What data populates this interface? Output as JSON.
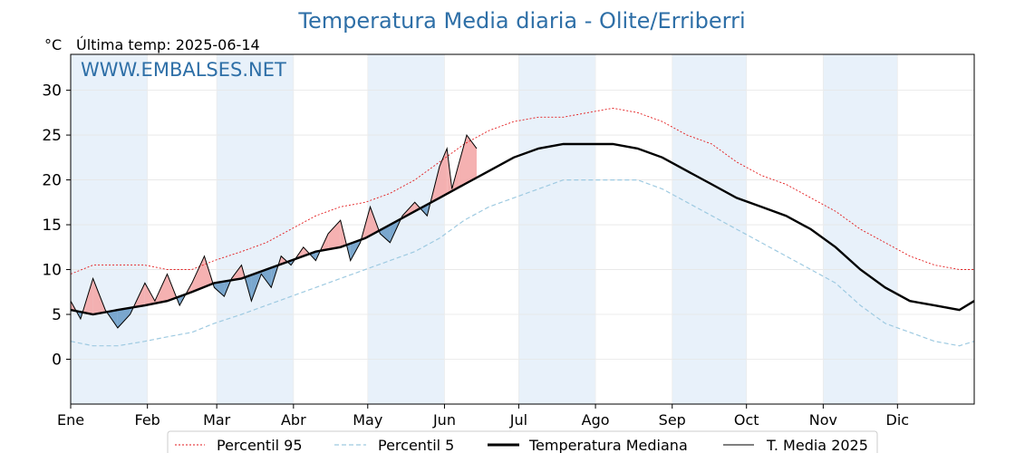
{
  "chart_data": {
    "type": "line",
    "title": "Temperatura Media diaria - Olite/Erriberri",
    "unit_label": "°C",
    "last_temp_label": "Última temp: 2025-06-14",
    "watermark": "WWW.EMBALSES.NET",
    "months": [
      "Ene",
      "Feb",
      "Mar",
      "Abr",
      "May",
      "Jun",
      "Jul",
      "Ago",
      "Sep",
      "Oct",
      "Nov",
      "Dic"
    ],
    "month_start_day": [
      1,
      32,
      60,
      91,
      121,
      152,
      182,
      213,
      244,
      274,
      305,
      335
    ],
    "x_range": [
      1,
      366
    ],
    "ylim": [
      -5,
      34
    ],
    "yticks": [
      0,
      5,
      10,
      15,
      20,
      25,
      30
    ],
    "grid": true,
    "legend_position": "bottom-center",
    "colors": {
      "p95": "#e31a1c",
      "p5": "#9ecae1",
      "median": "#000000",
      "current": "#000000",
      "above_fill": "#f4a9a8",
      "below_fill": "#6e9ec9",
      "band": "#e8f1fa",
      "title": "#2e6fa7"
    },
    "series": [
      {
        "name": "Percentil 95",
        "style": "dotted",
        "x": [
          1,
          10,
          20,
          31,
          40,
          50,
          59,
          70,
          80,
          90,
          100,
          110,
          120,
          130,
          140,
          150,
          160,
          170,
          180,
          190,
          200,
          210,
          220,
          230,
          240,
          250,
          260,
          270,
          280,
          290,
          300,
          310,
          320,
          330,
          340,
          350,
          360,
          366
        ],
        "y": [
          9.5,
          10.5,
          10.5,
          10.5,
          10.0,
          10.0,
          11.0,
          12.0,
          13.0,
          14.5,
          16.0,
          17.0,
          17.5,
          18.5,
          20.0,
          22.0,
          24.0,
          25.5,
          26.5,
          27.0,
          27.0,
          27.5,
          28.0,
          27.5,
          26.5,
          25.0,
          24.0,
          22.0,
          20.5,
          19.5,
          18.0,
          16.5,
          14.5,
          13.0,
          11.5,
          10.5,
          10.0,
          10.0
        ]
      },
      {
        "name": "Percentil 5",
        "style": "dashed",
        "x": [
          1,
          10,
          20,
          31,
          40,
          50,
          59,
          70,
          80,
          90,
          100,
          110,
          120,
          130,
          140,
          150,
          160,
          170,
          180,
          190,
          200,
          210,
          220,
          230,
          240,
          250,
          260,
          270,
          280,
          290,
          300,
          310,
          320,
          330,
          340,
          350,
          360,
          366
        ],
        "y": [
          2.0,
          1.5,
          1.5,
          2.0,
          2.5,
          3.0,
          4.0,
          5.0,
          6.0,
          7.0,
          8.0,
          9.0,
          10.0,
          11.0,
          12.0,
          13.5,
          15.5,
          17.0,
          18.0,
          19.0,
          20.0,
          20.0,
          20.0,
          20.0,
          19.0,
          17.5,
          16.0,
          14.5,
          13.0,
          11.5,
          10.0,
          8.5,
          6.0,
          4.0,
          3.0,
          2.0,
          1.5,
          2.0
        ]
      },
      {
        "name": "Temperatura Mediana",
        "style": "solid-bold",
        "x": [
          1,
          10,
          20,
          31,
          40,
          50,
          59,
          70,
          80,
          90,
          100,
          110,
          120,
          130,
          140,
          150,
          160,
          170,
          180,
          190,
          200,
          210,
          220,
          230,
          240,
          250,
          260,
          270,
          280,
          290,
          300,
          310,
          320,
          330,
          340,
          350,
          360,
          366
        ],
        "y": [
          5.5,
          5.0,
          5.5,
          6.0,
          6.5,
          7.5,
          8.5,
          9.0,
          10.0,
          11.0,
          12.0,
          12.5,
          13.5,
          15.0,
          16.5,
          18.0,
          19.5,
          21.0,
          22.5,
          23.5,
          24.0,
          24.0,
          24.0,
          23.5,
          22.5,
          21.0,
          19.5,
          18.0,
          17.0,
          16.0,
          14.5,
          12.5,
          10.0,
          8.0,
          6.5,
          6.0,
          5.5,
          6.5
        ]
      },
      {
        "name": "T. Media 2025",
        "style": "solid-thin",
        "x": [
          1,
          5,
          10,
          15,
          20,
          25,
          31,
          35,
          40,
          45,
          50,
          55,
          59,
          63,
          66,
          70,
          74,
          78,
          82,
          86,
          90,
          95,
          100,
          105,
          110,
          114,
          118,
          122,
          126,
          130,
          135,
          140,
          145,
          150,
          153,
          155,
          158,
          161,
          165
        ],
        "y": [
          6.5,
          4.5,
          9.0,
          5.5,
          3.5,
          5.0,
          8.5,
          6.5,
          9.5,
          6.0,
          8.5,
          11.5,
          8.0,
          7.0,
          9.0,
          10.5,
          6.5,
          9.5,
          8.0,
          11.5,
          10.5,
          12.5,
          11.0,
          14.0,
          15.5,
          11.0,
          13.0,
          17.0,
          14.0,
          13.0,
          16.0,
          17.5,
          16.0,
          21.5,
          23.5,
          19.0,
          22.0,
          25.0,
          23.5
        ]
      }
    ]
  },
  "legend": {
    "p95": "Percentil 95",
    "p5": "Percentil 5",
    "median": "Temperatura Mediana",
    "current": "T. Media 2025"
  }
}
